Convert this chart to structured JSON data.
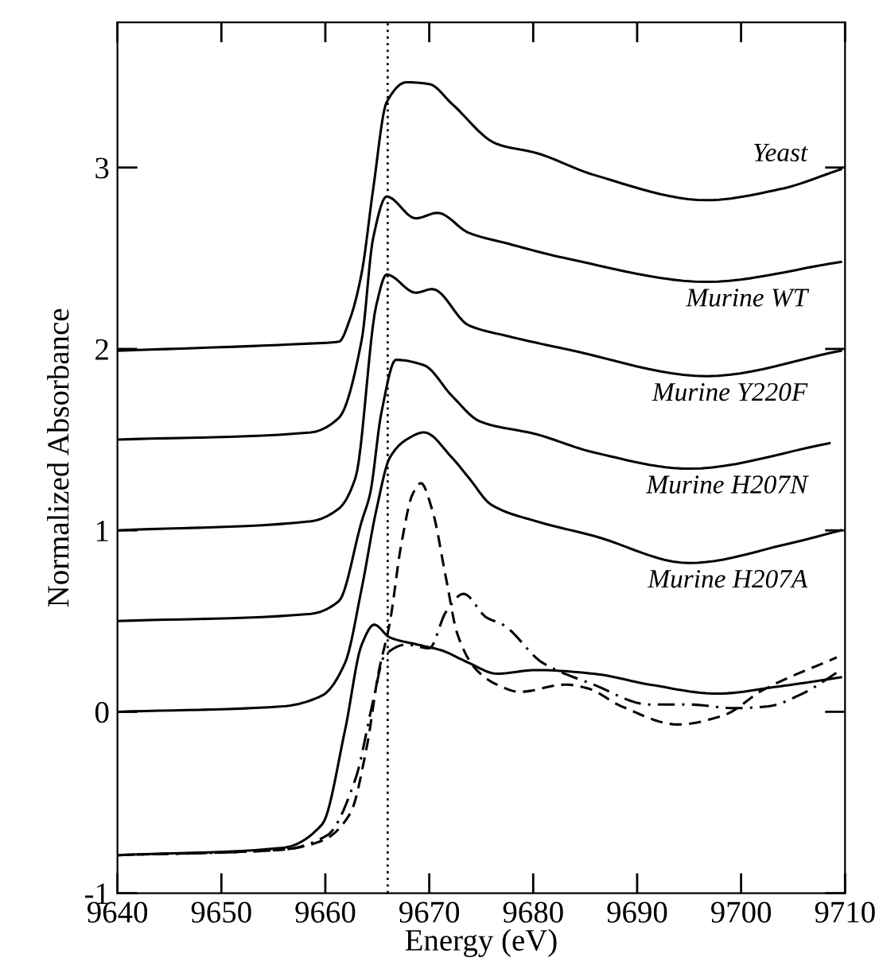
{
  "chart_data": {
    "type": "line",
    "xlabel": "Energy (eV)",
    "ylabel": "Normalized Absorbance",
    "xlim": [
      9640,
      9710
    ],
    "xticks": [
      9640,
      9650,
      9660,
      9670,
      9680,
      9690,
      9700,
      9710
    ],
    "ylim": [
      -1,
      3.8
    ],
    "yticks": [
      -1,
      0,
      1,
      2,
      3
    ],
    "grid": false,
    "marker": "none",
    "series": [
      {
        "name": "Yeast",
        "color": "#000000",
        "line_style": "solid",
        "x": [
          9640,
          9658.6,
          9661.3,
          9662.4,
          9663.5,
          9664.6,
          9665.9,
          9667.8,
          9670,
          9672.2,
          9676.5,
          9680.3,
          9685.8,
          9696.7,
          9703.7,
          9709.6
        ],
        "values": [
          1.99,
          2.03,
          2.04,
          2.17,
          2.42,
          2.88,
          3.36,
          3.47,
          3.46,
          3.35,
          3.13,
          3.08,
          2.96,
          2.82,
          2.88,
          2.99
        ]
      },
      {
        "name": "Murine WT",
        "color": "#000000",
        "line_style": "solid",
        "x": [
          9640,
          9658.6,
          9661.3,
          9663.5,
          9664.6,
          9665.9,
          9668.7,
          9670.8,
          9673.8,
          9677.6,
          9683.1,
          9696.7,
          9709.6
        ],
        "values": [
          1.5,
          1.54,
          1.62,
          2.05,
          2.61,
          2.84,
          2.72,
          2.75,
          2.64,
          2.58,
          2.5,
          2.37,
          2.48
        ]
      },
      {
        "name": "Murine Y220F",
        "color": "#000000",
        "line_style": "solid",
        "x": [
          9640,
          9658.6,
          9661.3,
          9662.9,
          9664.9,
          9665.9,
          9668.7,
          9670.3,
          9673.8,
          9677.6,
          9683.1,
          9696.7,
          9709.6
        ],
        "values": [
          1.0,
          1.05,
          1.12,
          1.29,
          2.24,
          2.41,
          2.31,
          2.33,
          2.13,
          2.07,
          2.0,
          1.85,
          1.99
        ]
      },
      {
        "name": "Murine H207N",
        "color": "#000000",
        "line_style": "solid",
        "x": [
          9640,
          9658.6,
          9661.3,
          9663.5,
          9664.3,
          9665.4,
          9666.8,
          9669.5,
          9672.2,
          9674.9,
          9680.3,
          9685.8,
          9695.0,
          9708.5
        ],
        "values": [
          0.5,
          0.54,
          0.61,
          1.05,
          1.2,
          1.65,
          1.94,
          1.91,
          1.74,
          1.6,
          1.53,
          1.43,
          1.34,
          1.48
        ]
      },
      {
        "name": "Murine H207A",
        "color": "#000000",
        "line_style": "solid",
        "x": [
          9640,
          9655.9,
          9659.7,
          9661.9,
          9663.5,
          9664.9,
          9666.2,
          9667.8,
          9669.5,
          9672.2,
          9673.8,
          9676.0,
          9680.3,
          9685.8,
          9695.0,
          9704.8,
          9709.6
        ],
        "values": [
          0.0,
          0.03,
          0.09,
          0.27,
          0.68,
          1.11,
          1.4,
          1.5,
          1.54,
          1.4,
          1.29,
          1.14,
          1.05,
          0.97,
          0.82,
          0.93,
          1.0
        ]
      },
      {
        "color": "#000000",
        "line_style": "solid",
        "x": [
          9640,
          9655.9,
          9659.7,
          9661.9,
          9663.5,
          9664.7,
          9666.2,
          9668.9,
          9671.1,
          9673.8,
          9676.5,
          9680.3,
          9685.8,
          9691.2,
          9697.7,
          9703.7,
          9709.6
        ],
        "values": [
          -0.79,
          -0.75,
          -0.62,
          -0.1,
          0.37,
          0.48,
          0.41,
          0.37,
          0.34,
          0.27,
          0.21,
          0.23,
          0.21,
          0.15,
          0.1,
          0.14,
          0.19
        ]
      },
      {
        "color": "#000000",
        "line_style": "dashed",
        "x": [
          9640,
          9655.9,
          9659.7,
          9662.4,
          9664.0,
          9665.1,
          9666.2,
          9667.3,
          9668.4,
          9669.2,
          9670.3,
          9671.6,
          9672.7,
          9674.4,
          9676.5,
          9678.7,
          9683.1,
          9685.2,
          9688.5,
          9693.9,
          9698.3,
          9702.1,
          9709.2
        ],
        "values": [
          -0.79,
          -0.76,
          -0.71,
          -0.56,
          -0.19,
          0.21,
          0.49,
          0.92,
          1.2,
          1.26,
          1.11,
          0.74,
          0.43,
          0.24,
          0.15,
          0.11,
          0.15,
          0.13,
          0.03,
          -0.07,
          -0.02,
          0.12,
          0.3
        ]
      },
      {
        "color": "#000000",
        "line_style": "dashdot",
        "x": [
          9640,
          9655.9,
          9660.2,
          9662.9,
          9664.6,
          9665.7,
          9667.8,
          9670.0,
          9671.6,
          9673.3,
          9675.5,
          9677.1,
          9680.9,
          9685.8,
          9691.2,
          9695.0,
          9699.4,
          9702.6,
          9705.9,
          9709.6
        ],
        "values": [
          -0.79,
          -0.76,
          -0.68,
          -0.37,
          0.06,
          0.31,
          0.37,
          0.35,
          0.55,
          0.65,
          0.52,
          0.48,
          0.27,
          0.15,
          0.04,
          0.04,
          0.02,
          0.03,
          0.1,
          0.23
        ]
      }
    ],
    "ref_lines": [
      {
        "axis": "x",
        "value": 9666,
        "line_style": "dotted",
        "color": "#000000"
      }
    ]
  }
}
